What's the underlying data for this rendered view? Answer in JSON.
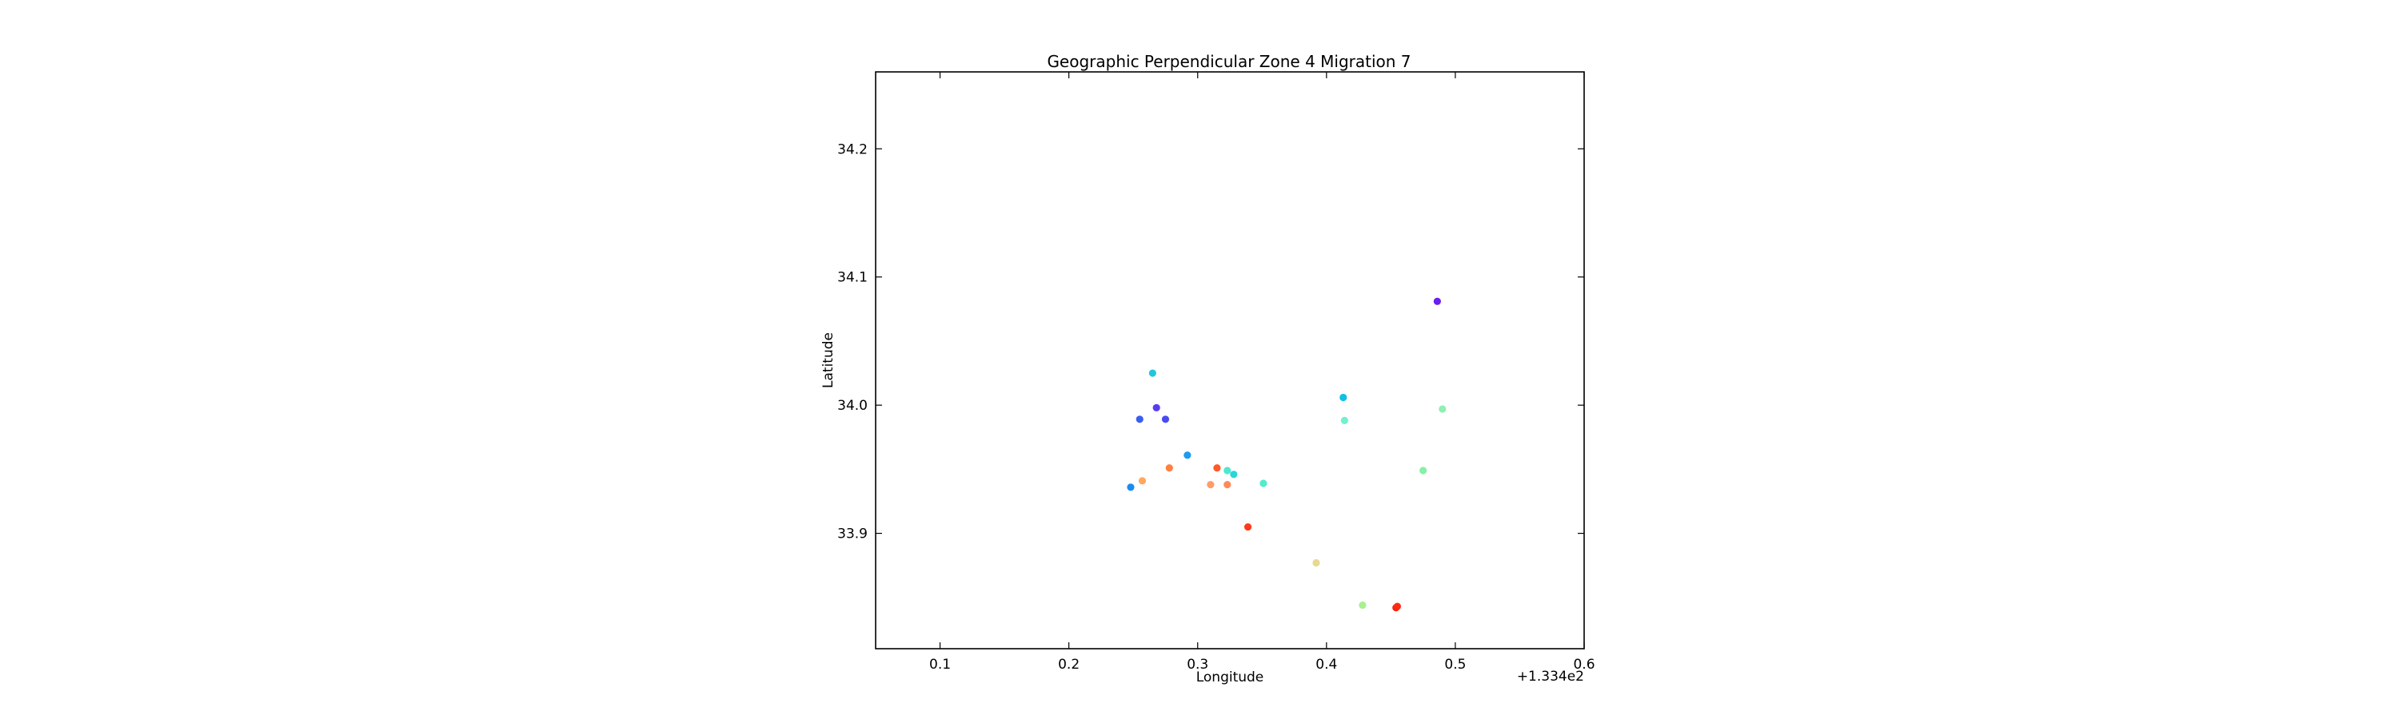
{
  "chart_data": {
    "type": "scatter",
    "title": "Geographic Perpendicular Zone 4 Migration 7",
    "xlabel": "Longitude",
    "ylabel": "Latitude",
    "x_offset_label": "+1.334e2",
    "x_offset": 133.4,
    "xlim": [
      0.05,
      0.6
    ],
    "ylim": [
      33.81,
      34.26
    ],
    "xticks": [
      0.1,
      0.2,
      0.3,
      0.4,
      0.5,
      0.6
    ],
    "xtick_labels": [
      "0.1",
      "0.2",
      "0.3",
      "0.4",
      "0.5",
      "0.6"
    ],
    "yticks": [
      33.9,
      34.0,
      34.1,
      34.2
    ],
    "ytick_labels": [
      "33.9",
      "34.0",
      "34.1",
      "34.2"
    ],
    "grid": false,
    "points": [
      {
        "x": 0.486,
        "y": 34.081,
        "color": "#6a1ef0"
      },
      {
        "x": 0.265,
        "y": 34.025,
        "color": "#22c6dc"
      },
      {
        "x": 0.413,
        "y": 34.006,
        "color": "#0fbfe4"
      },
      {
        "x": 0.268,
        "y": 33.998,
        "color": "#5a3cf0"
      },
      {
        "x": 0.49,
        "y": 33.997,
        "color": "#8ef0b4"
      },
      {
        "x": 0.255,
        "y": 33.989,
        "color": "#3a5ef0"
      },
      {
        "x": 0.275,
        "y": 33.989,
        "color": "#4a4af0"
      },
      {
        "x": 0.414,
        "y": 33.988,
        "color": "#72f0d0"
      },
      {
        "x": 0.292,
        "y": 33.961,
        "color": "#1a9cf0"
      },
      {
        "x": 0.278,
        "y": 33.951,
        "color": "#ff8040"
      },
      {
        "x": 0.315,
        "y": 33.951,
        "color": "#ff5a2a"
      },
      {
        "x": 0.323,
        "y": 33.949,
        "color": "#4ee8d0"
      },
      {
        "x": 0.475,
        "y": 33.949,
        "color": "#86f0a8"
      },
      {
        "x": 0.328,
        "y": 33.946,
        "color": "#2ad6d8"
      },
      {
        "x": 0.257,
        "y": 33.941,
        "color": "#ffa860"
      },
      {
        "x": 0.351,
        "y": 33.939,
        "color": "#52eccc"
      },
      {
        "x": 0.31,
        "y": 33.938,
        "color": "#ff9c6a"
      },
      {
        "x": 0.323,
        "y": 33.938,
        "color": "#ff8a58"
      },
      {
        "x": 0.248,
        "y": 33.936,
        "color": "#1a8cf0"
      },
      {
        "x": 0.339,
        "y": 33.905,
        "color": "#ff3a1a"
      },
      {
        "x": 0.392,
        "y": 33.877,
        "color": "#e8d890"
      },
      {
        "x": 0.428,
        "y": 33.844,
        "color": "#a8f090"
      },
      {
        "x": 0.454,
        "y": 33.842,
        "color": "#ff1a0a"
      },
      {
        "x": 0.455,
        "y": 33.843,
        "color": "#ff2a12"
      }
    ]
  }
}
